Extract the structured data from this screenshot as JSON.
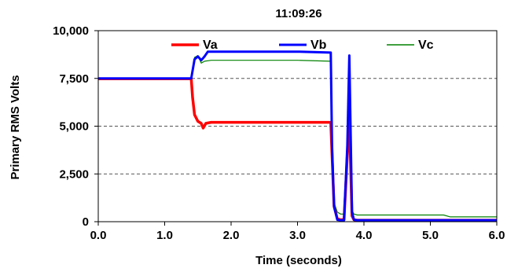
{
  "chart_data": {
    "type": "line",
    "title": "11:09:26",
    "xlabel": "Time (seconds)",
    "ylabel": "Primary RMS Volts",
    "xlim": [
      0,
      6
    ],
    "ylim": [
      0,
      10000
    ],
    "x_ticks": [
      0,
      1,
      2,
      3,
      4,
      5,
      6
    ],
    "x_tick_labels": [
      "0.0",
      "1.0",
      "2.0",
      "3.0",
      "4.0",
      "5.0",
      "6.0"
    ],
    "y_ticks": [
      0,
      2500,
      5000,
      7500,
      10000
    ],
    "y_tick_labels": [
      "0",
      "2,500",
      "5,000",
      "7,500",
      "10,000"
    ],
    "grid": "horizontal-dashed",
    "legend": "top",
    "series": [
      {
        "name": "Va",
        "color": "#ff0000",
        "x": [
          0,
          0.5,
          1.0,
          1.4,
          1.42,
          1.45,
          1.5,
          1.55,
          1.58,
          1.62,
          1.7,
          2.0,
          2.5,
          3.0,
          3.5,
          3.52,
          3.55,
          3.6,
          3.65,
          3.7,
          3.75,
          3.78,
          3.82,
          3.85,
          3.9,
          4.0,
          4.5,
          5.0,
          5.5,
          6.0
        ],
        "values": [
          7480,
          7480,
          7480,
          7480,
          6500,
          5600,
          5250,
          5150,
          4900,
          5150,
          5200,
          5200,
          5200,
          5200,
          5200,
          3500,
          800,
          150,
          100,
          120,
          3500,
          5500,
          300,
          100,
          80,
          80,
          80,
          80,
          80,
          80
        ]
      },
      {
        "name": "Vb",
        "color": "#0000ff",
        "x": [
          0,
          0.5,
          1.0,
          1.4,
          1.45,
          1.5,
          1.55,
          1.6,
          1.65,
          1.7,
          2.0,
          2.5,
          3.0,
          3.5,
          3.52,
          3.55,
          3.6,
          3.65,
          3.7,
          3.75,
          3.78,
          3.82,
          3.85,
          3.9,
          4.0,
          4.5,
          5.0,
          5.5,
          6.0
        ],
        "values": [
          7500,
          7500,
          7500,
          7500,
          8500,
          8650,
          8450,
          8650,
          8900,
          8900,
          8900,
          8900,
          8900,
          8850,
          4000,
          800,
          100,
          80,
          80,
          4000,
          8700,
          500,
          100,
          80,
          80,
          80,
          80,
          80,
          80
        ]
      },
      {
        "name": "Vc",
        "color": "#008000",
        "x": [
          0,
          0.5,
          1.0,
          1.4,
          1.45,
          1.5,
          1.55,
          1.6,
          1.7,
          2.0,
          2.5,
          3.0,
          3.5,
          3.52,
          3.55,
          3.6,
          3.65,
          3.7,
          3.75,
          3.78,
          3.82,
          3.85,
          3.9,
          4.0,
          4.5,
          5.0,
          5.2,
          5.3,
          5.5,
          6.0
        ],
        "values": [
          7500,
          7500,
          7500,
          7500,
          8600,
          8700,
          8300,
          8400,
          8450,
          8450,
          8450,
          8450,
          8400,
          3000,
          1000,
          500,
          400,
          400,
          3000,
          8000,
          600,
          400,
          350,
          350,
          350,
          350,
          350,
          250,
          250,
          250
        ]
      }
    ]
  }
}
